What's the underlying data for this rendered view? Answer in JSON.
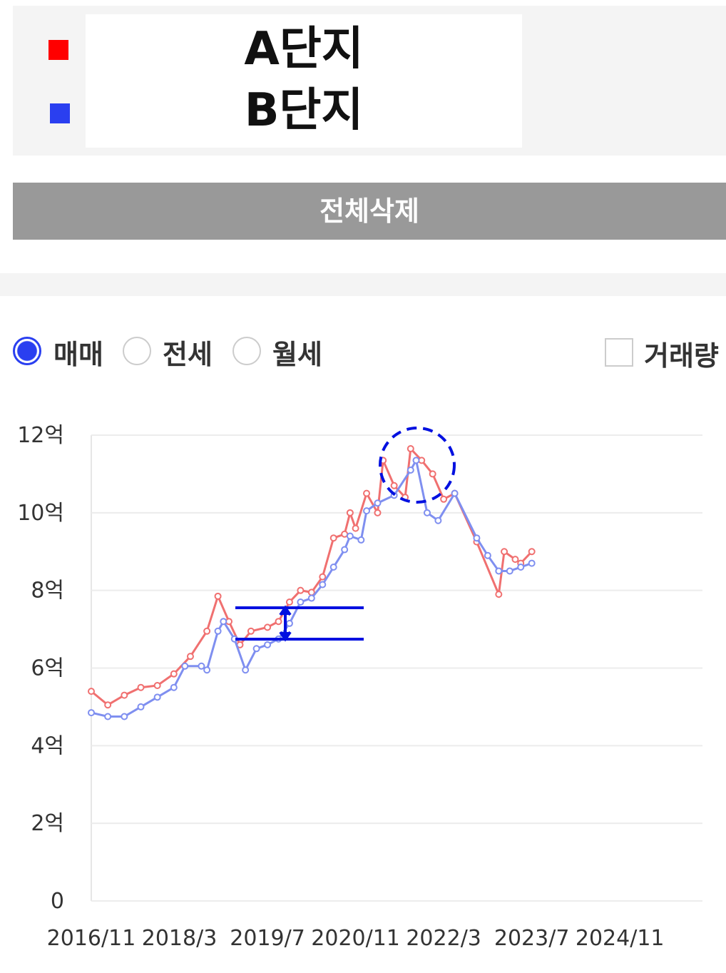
{
  "delete_all_button": "전체삭제",
  "trade_types": [
    "매매",
    "전세",
    "월세"
  ],
  "volume_checkbox": "거래량",
  "chart_data": {
    "type": "line",
    "xlim": [
      "2016/11",
      "2026/2"
    ],
    "xticks": [
      "2016/11",
      "2018/3",
      "2019/7",
      "2020/11",
      "2022/3",
      "2023/7",
      "2024/11"
    ],
    "ylim": [
      0,
      12
    ],
    "yticks": [
      0,
      {
        "value": 2,
        "label": "2억"
      },
      {
        "value": 4,
        "label": "4억"
      },
      {
        "value": 6,
        "label": "6억"
      },
      {
        "value": 8,
        "label": "8억"
      },
      {
        "value": 10,
        "label": "10억"
      },
      {
        "value": 12,
        "label": "12억"
      }
    ],
    "grid": true,
    "series": [
      {
        "name": "A단지",
        "color": "#f07070",
        "x": [
          "2016/11",
          "2017/2",
          "2017/5",
          "2017/8",
          "2017/11",
          "2018/2",
          "2018/5",
          "2018/8",
          "2018/10",
          "2018/12",
          "2019/2",
          "2019/4",
          "2019/7",
          "2019/9",
          "2019/11",
          "2020/1",
          "2020/3",
          "2020/5",
          "2020/7",
          "2020/9",
          "2020/10",
          "2020/11",
          "2021/1",
          "2021/3",
          "2021/4",
          "2021/6",
          "2021/8",
          "2021/9",
          "2021/11",
          "2022/1",
          "2022/3",
          "2022/5",
          "2022/9",
          "2023/1",
          "2023/2",
          "2023/4",
          "2023/5",
          "2023/7"
        ],
        "values": [
          5.4,
          5.05,
          5.3,
          5.5,
          5.55,
          5.85,
          6.3,
          6.95,
          7.85,
          7.2,
          6.6,
          6.95,
          7.05,
          7.2,
          7.7,
          8.0,
          7.95,
          8.35,
          9.35,
          9.45,
          10.0,
          9.6,
          10.5,
          10.0,
          11.35,
          10.7,
          10.4,
          11.65,
          11.35,
          11.0,
          10.35,
          10.5,
          9.25,
          7.9,
          9.0,
          8.8,
          8.7,
          9.0
        ]
      },
      {
        "name": "B단지",
        "color": "#7f8ff0",
        "x": [
          "2016/11",
          "2017/2",
          "2017/5",
          "2017/8",
          "2017/11",
          "2018/2",
          "2018/4",
          "2018/7",
          "2018/8",
          "2018/10",
          "2018/11",
          "2019/1",
          "2019/3",
          "2019/5",
          "2019/7",
          "2019/9",
          "2019/11",
          "2020/1",
          "2020/3",
          "2020/5",
          "2020/7",
          "2020/9",
          "2020/10",
          "2020/12",
          "2021/1",
          "2021/3",
          "2021/6",
          "2021/9",
          "2021/10",
          "2021/12",
          "2022/2",
          "2022/5",
          "2022/9",
          "2022/11",
          "2023/1",
          "2023/3",
          "2023/5",
          "2023/7"
        ],
        "values": [
          4.85,
          4.75,
          4.75,
          5.0,
          5.25,
          5.5,
          6.05,
          6.05,
          5.95,
          6.95,
          7.2,
          6.75,
          5.95,
          6.5,
          6.6,
          6.75,
          7.15,
          7.7,
          7.8,
          8.15,
          8.6,
          9.05,
          9.4,
          9.3,
          10.05,
          10.25,
          10.45,
          11.1,
          11.35,
          10.0,
          9.8,
          10.5,
          9.35,
          8.9,
          8.5,
          8.5,
          8.6,
          8.7
        ]
      }
    ]
  }
}
